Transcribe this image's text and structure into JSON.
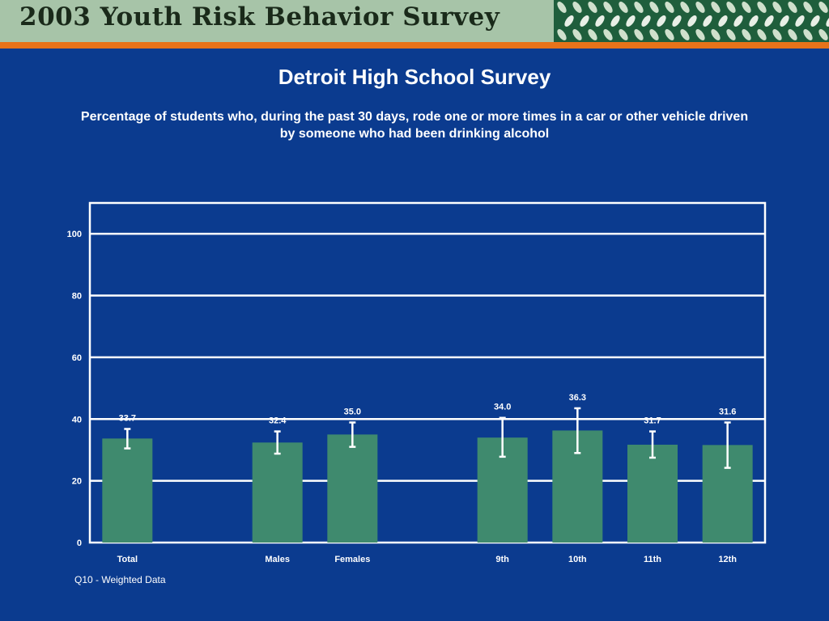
{
  "banner": {
    "title": "2003 Youth Risk Behavior Survey",
    "background_color": "#a7c4a8",
    "pattern_color": "#2e7d4f",
    "rule_color": "#e8731a"
  },
  "footnote": "Q10 - Weighted Data",
  "colors": {
    "background": "#0b3b8f",
    "bar": "#3f8a6e",
    "text": "#ffffff"
  },
  "chart_data": {
    "type": "bar",
    "title": "Detroit High School Survey",
    "subtitle": "Percentage of students who, during the past 30 days, rode one or more times in a car or other vehicle driven by someone who had been drinking alcohol",
    "categories": [
      "Total",
      "Males",
      "Females",
      "9th",
      "10th",
      "11th",
      "12th"
    ],
    "values": [
      33.7,
      32.4,
      35.0,
      34.0,
      36.3,
      31.7,
      31.6
    ],
    "value_labels": [
      "33.7",
      "32.4",
      "35.0",
      "34.0",
      "36.3",
      "31.7",
      "31.6"
    ],
    "error_low": [
      30.5,
      28.8,
      31.0,
      27.8,
      29.0,
      27.5,
      24.2
    ],
    "error_high": [
      36.8,
      36.0,
      38.9,
      40.4,
      43.5,
      36.0,
      38.9
    ],
    "yticks": [
      0,
      20,
      40,
      60,
      80,
      100
    ],
    "ylim": [
      0,
      110
    ],
    "grid": true
  }
}
